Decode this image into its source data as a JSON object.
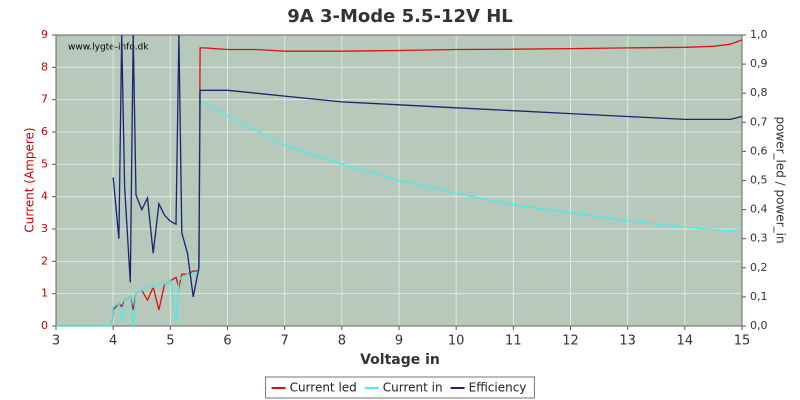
{
  "chart_data": {
    "type": "line",
    "title": "9A 3-Mode 5.5-12V HL",
    "x_label": "Voltage in",
    "y_label": "Current (Ampere)",
    "y2_label": "power_led / power_in",
    "watermark": "www.lygte-info.dk",
    "xlim": [
      3,
      15
    ],
    "xticks": [
      3,
      4,
      5,
      6,
      7,
      8,
      9,
      10,
      11,
      12,
      13,
      14,
      15
    ],
    "ylim": [
      0,
      9
    ],
    "yticks": [
      0,
      1,
      2,
      3,
      4,
      5,
      6,
      7,
      8,
      9
    ],
    "y2lim": [
      0,
      1
    ],
    "y2ticks": [
      {
        "value": 0,
        "label": "0,0"
      },
      {
        "value": 0.1,
        "label": "0,1"
      },
      {
        "value": 0.2,
        "label": "0,2"
      },
      {
        "value": 0.3,
        "label": "0,3"
      },
      {
        "value": 0.4,
        "label": "0,4"
      },
      {
        "value": 0.5,
        "label": "0,5"
      },
      {
        "value": 0.6,
        "label": "0,6"
      },
      {
        "value": 0.7,
        "label": "0,7"
      },
      {
        "value": 0.8,
        "label": "0,8"
      },
      {
        "value": 0.9,
        "label": "0,9"
      },
      {
        "value": 1,
        "label": "1,0"
      }
    ],
    "grid": true,
    "legend": "bottom",
    "x": [
      3,
      3.97,
      4.0,
      4.1,
      4.15,
      4.2,
      4.3,
      4.35,
      4.4,
      4.5,
      4.6,
      4.7,
      4.8,
      4.9,
      5.0,
      5.1,
      5.15,
      5.2,
      5.3,
      5.4,
      5.5,
      5.52,
      5.6,
      6,
      6.5,
      7,
      8,
      9,
      10,
      11,
      12,
      13,
      14,
      14.5,
      14.8,
      15
    ],
    "series": [
      {
        "name": "Current led",
        "color": "#dd1111",
        "values": [
          0,
          0,
          0.5,
          0.7,
          0.6,
          0.8,
          0.9,
          0.5,
          1.0,
          1.1,
          0.8,
          1.2,
          0.5,
          1.3,
          1.4,
          1.5,
          1.2,
          1.6,
          1.6,
          1.7,
          1.7,
          8.6,
          8.6,
          8.55,
          8.55,
          8.5,
          8.5,
          8.52,
          8.55,
          8.56,
          8.58,
          8.6,
          8.62,
          8.65,
          8.72,
          8.85
        ]
      },
      {
        "name": "Current in",
        "color": "#44eeee",
        "values": [
          0,
          0,
          0.6,
          0.7,
          0.1,
          0.8,
          0.9,
          0,
          1.0,
          1.1,
          1.2,
          1.2,
          1.3,
          1.3,
          1.4,
          0.1,
          1.4,
          1.5,
          1.6,
          1.6,
          1.7,
          7.0,
          6.9,
          6.5,
          6.05,
          5.6,
          5.0,
          4.5,
          4.1,
          3.75,
          3.5,
          3.25,
          3.05,
          2.98,
          2.95,
          3.0
        ]
      },
      {
        "name": "Efficiency",
        "color": "#1a2470",
        "axis": "y2",
        "values": [
          null,
          null,
          0.51,
          0.3,
          1.0,
          0.48,
          0.15,
          1.0,
          0.45,
          0.4,
          0.44,
          0.25,
          0.42,
          0.38,
          0.36,
          0.35,
          1.0,
          0.32,
          0.25,
          0.1,
          0.2,
          0.81,
          0.81,
          0.81,
          0.8,
          0.79,
          0.77,
          0.76,
          0.75,
          0.74,
          0.73,
          0.72,
          0.71,
          0.71,
          0.71,
          0.72
        ]
      }
    ]
  }
}
